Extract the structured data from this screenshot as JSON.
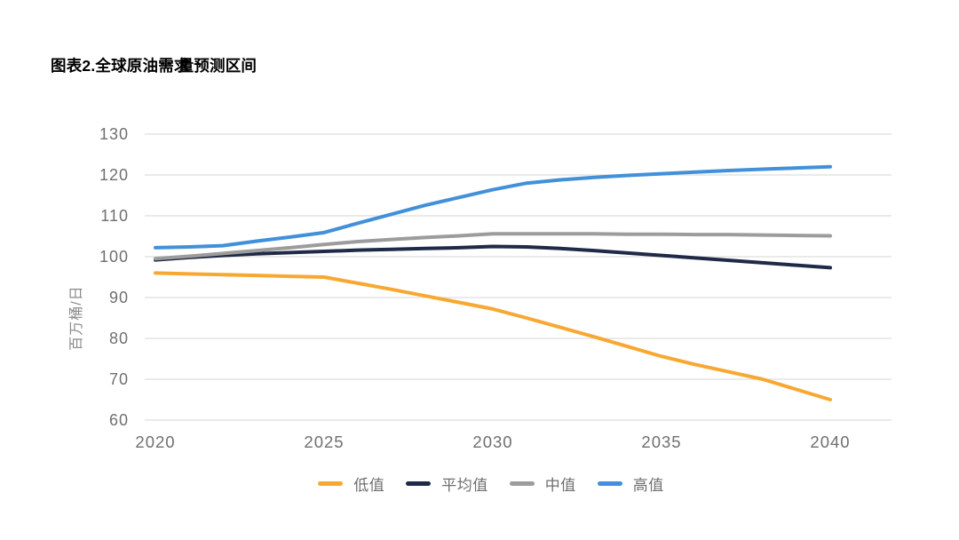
{
  "title": {
    "full": "图表2.全球原油需求量预测区间",
    "parts": [
      "图表2.全球原油需",
      "求",
      "量预测区间"
    ]
  },
  "colors": {
    "low": "#F7A832",
    "average": "#1F2A47",
    "median": "#9C9C9C",
    "high": "#4190D9",
    "gridline": "#E3E3E3",
    "tick_text": "#6F6F6F",
    "axis_label_text": "#8A8A8A"
  },
  "chart_data": {
    "type": "line",
    "title": "图表2.全球原油需求量预测区间",
    "xlabel": "",
    "ylabel": "百万桶/日",
    "ylim": [
      60,
      130
    ],
    "grid": "horizontal",
    "legend_position": "bottom",
    "x": [
      2020,
      2021,
      2022,
      2023,
      2024,
      2025,
      2026,
      2027,
      2028,
      2029,
      2030,
      2031,
      2032,
      2033,
      2034,
      2035,
      2036,
      2037,
      2038,
      2039,
      2040
    ],
    "x_ticks": [
      2020,
      2025,
      2030,
      2035,
      2040
    ],
    "y_ticks": [
      130,
      120,
      110,
      100,
      90,
      80,
      70,
      60
    ],
    "series": [
      {
        "name": "低值",
        "color": "#F7A832",
        "values": [
          96.0,
          95.8,
          95.6,
          95.4,
          95.2,
          95.0,
          93.5,
          92.0,
          90.4,
          88.8,
          87.2,
          85.0,
          82.7,
          80.4,
          78.0,
          75.6,
          73.6,
          71.8,
          70.0,
          67.5,
          65.0
        ]
      },
      {
        "name": "平均值",
        "color": "#1F2A47",
        "values": [
          99.2,
          99.8,
          100.3,
          100.7,
          101.0,
          101.3,
          101.6,
          101.8,
          102.0,
          102.2,
          102.5,
          102.4,
          102.0,
          101.5,
          100.9,
          100.3,
          99.7,
          99.1,
          98.5,
          97.9,
          97.3
        ]
      },
      {
        "name": "中值",
        "color": "#9C9C9C",
        "values": [
          99.5,
          100.1,
          100.8,
          101.5,
          102.2,
          103.0,
          103.7,
          104.2,
          104.7,
          105.1,
          105.6,
          105.6,
          105.6,
          105.6,
          105.5,
          105.5,
          105.4,
          105.4,
          105.3,
          105.2,
          105.1
        ]
      },
      {
        "name": "高值",
        "color": "#4190D9",
        "values": [
          102.2,
          102.4,
          102.7,
          103.8,
          104.8,
          105.9,
          108.2,
          110.4,
          112.6,
          114.5,
          116.4,
          118.0,
          118.8,
          119.4,
          119.9,
          120.3,
          120.7,
          121.1,
          121.4,
          121.7,
          122.0
        ]
      }
    ]
  }
}
